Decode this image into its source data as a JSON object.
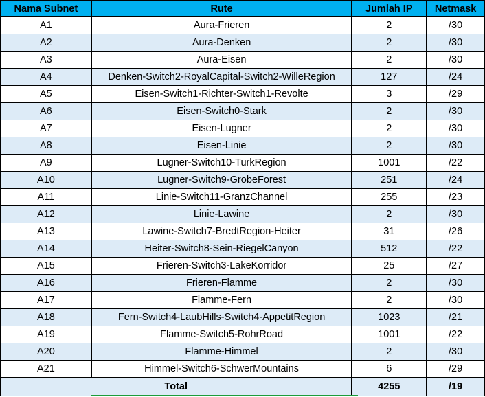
{
  "table": {
    "headers": [
      "Nama Subnet",
      "Rute",
      "Jumlah IP",
      "Netmask"
    ],
    "rows": [
      [
        "A1",
        "Aura-Frieren",
        "2",
        "/30"
      ],
      [
        "A2",
        "Aura-Denken",
        "2",
        "/30"
      ],
      [
        "A3",
        "Aura-Eisen",
        "2",
        "/30"
      ],
      [
        "A4",
        "Denken-Switch2-RoyalCapital-Switch2-WilleRegion",
        "127",
        "/24"
      ],
      [
        "A5",
        "Eisen-Switch1-Richter-Switch1-Revolte",
        "3",
        "/29"
      ],
      [
        "A6",
        "Eisen-Switch0-Stark",
        "2",
        "/30"
      ],
      [
        "A7",
        "Eisen-Lugner",
        "2",
        "/30"
      ],
      [
        "A8",
        "Eisen-Linie",
        "2",
        "/30"
      ],
      [
        "A9",
        "Lugner-Switch10-TurkRegion",
        "1001",
        "/22"
      ],
      [
        "A10",
        "Lugner-Switch9-GrobeForest",
        "251",
        "/24"
      ],
      [
        "A11",
        "Linie-Switch11-GranzChannel",
        "255",
        "/23"
      ],
      [
        "A12",
        "Linie-Lawine",
        "2",
        "/30"
      ],
      [
        "A13",
        "Lawine-Switch7-BredtRegion-Heiter",
        "31",
        "/26"
      ],
      [
        "A14",
        "Heiter-Switch8-Sein-RiegelCanyon",
        "512",
        "/22"
      ],
      [
        "A15",
        "Frieren-Switch3-LakeKorridor",
        "25",
        "/27"
      ],
      [
        "A16",
        "Frieren-Flamme",
        "2",
        "/30"
      ],
      [
        "A17",
        "Flamme-Fern",
        "2",
        "/30"
      ],
      [
        "A18",
        "Fern-Switch4-LaubHills-Switch4-AppetitRegion",
        "1023",
        "/21"
      ],
      [
        "A19",
        "Flamme-Switch5-RohrRoad",
        "1001",
        "/22"
      ],
      [
        "A20",
        "Flamme-Himmel",
        "2",
        "/30"
      ],
      [
        "A21",
        "Himmel-Switch6-SchwerMountains",
        "6",
        "/29"
      ]
    ],
    "total": {
      "label": "Total",
      "jumlah_ip": "4255",
      "netmask": "/19"
    }
  },
  "colors": {
    "header_bg": "#00b0f0",
    "band_bg": "#ddebf7",
    "accent_line": "#1e9b3a"
  }
}
